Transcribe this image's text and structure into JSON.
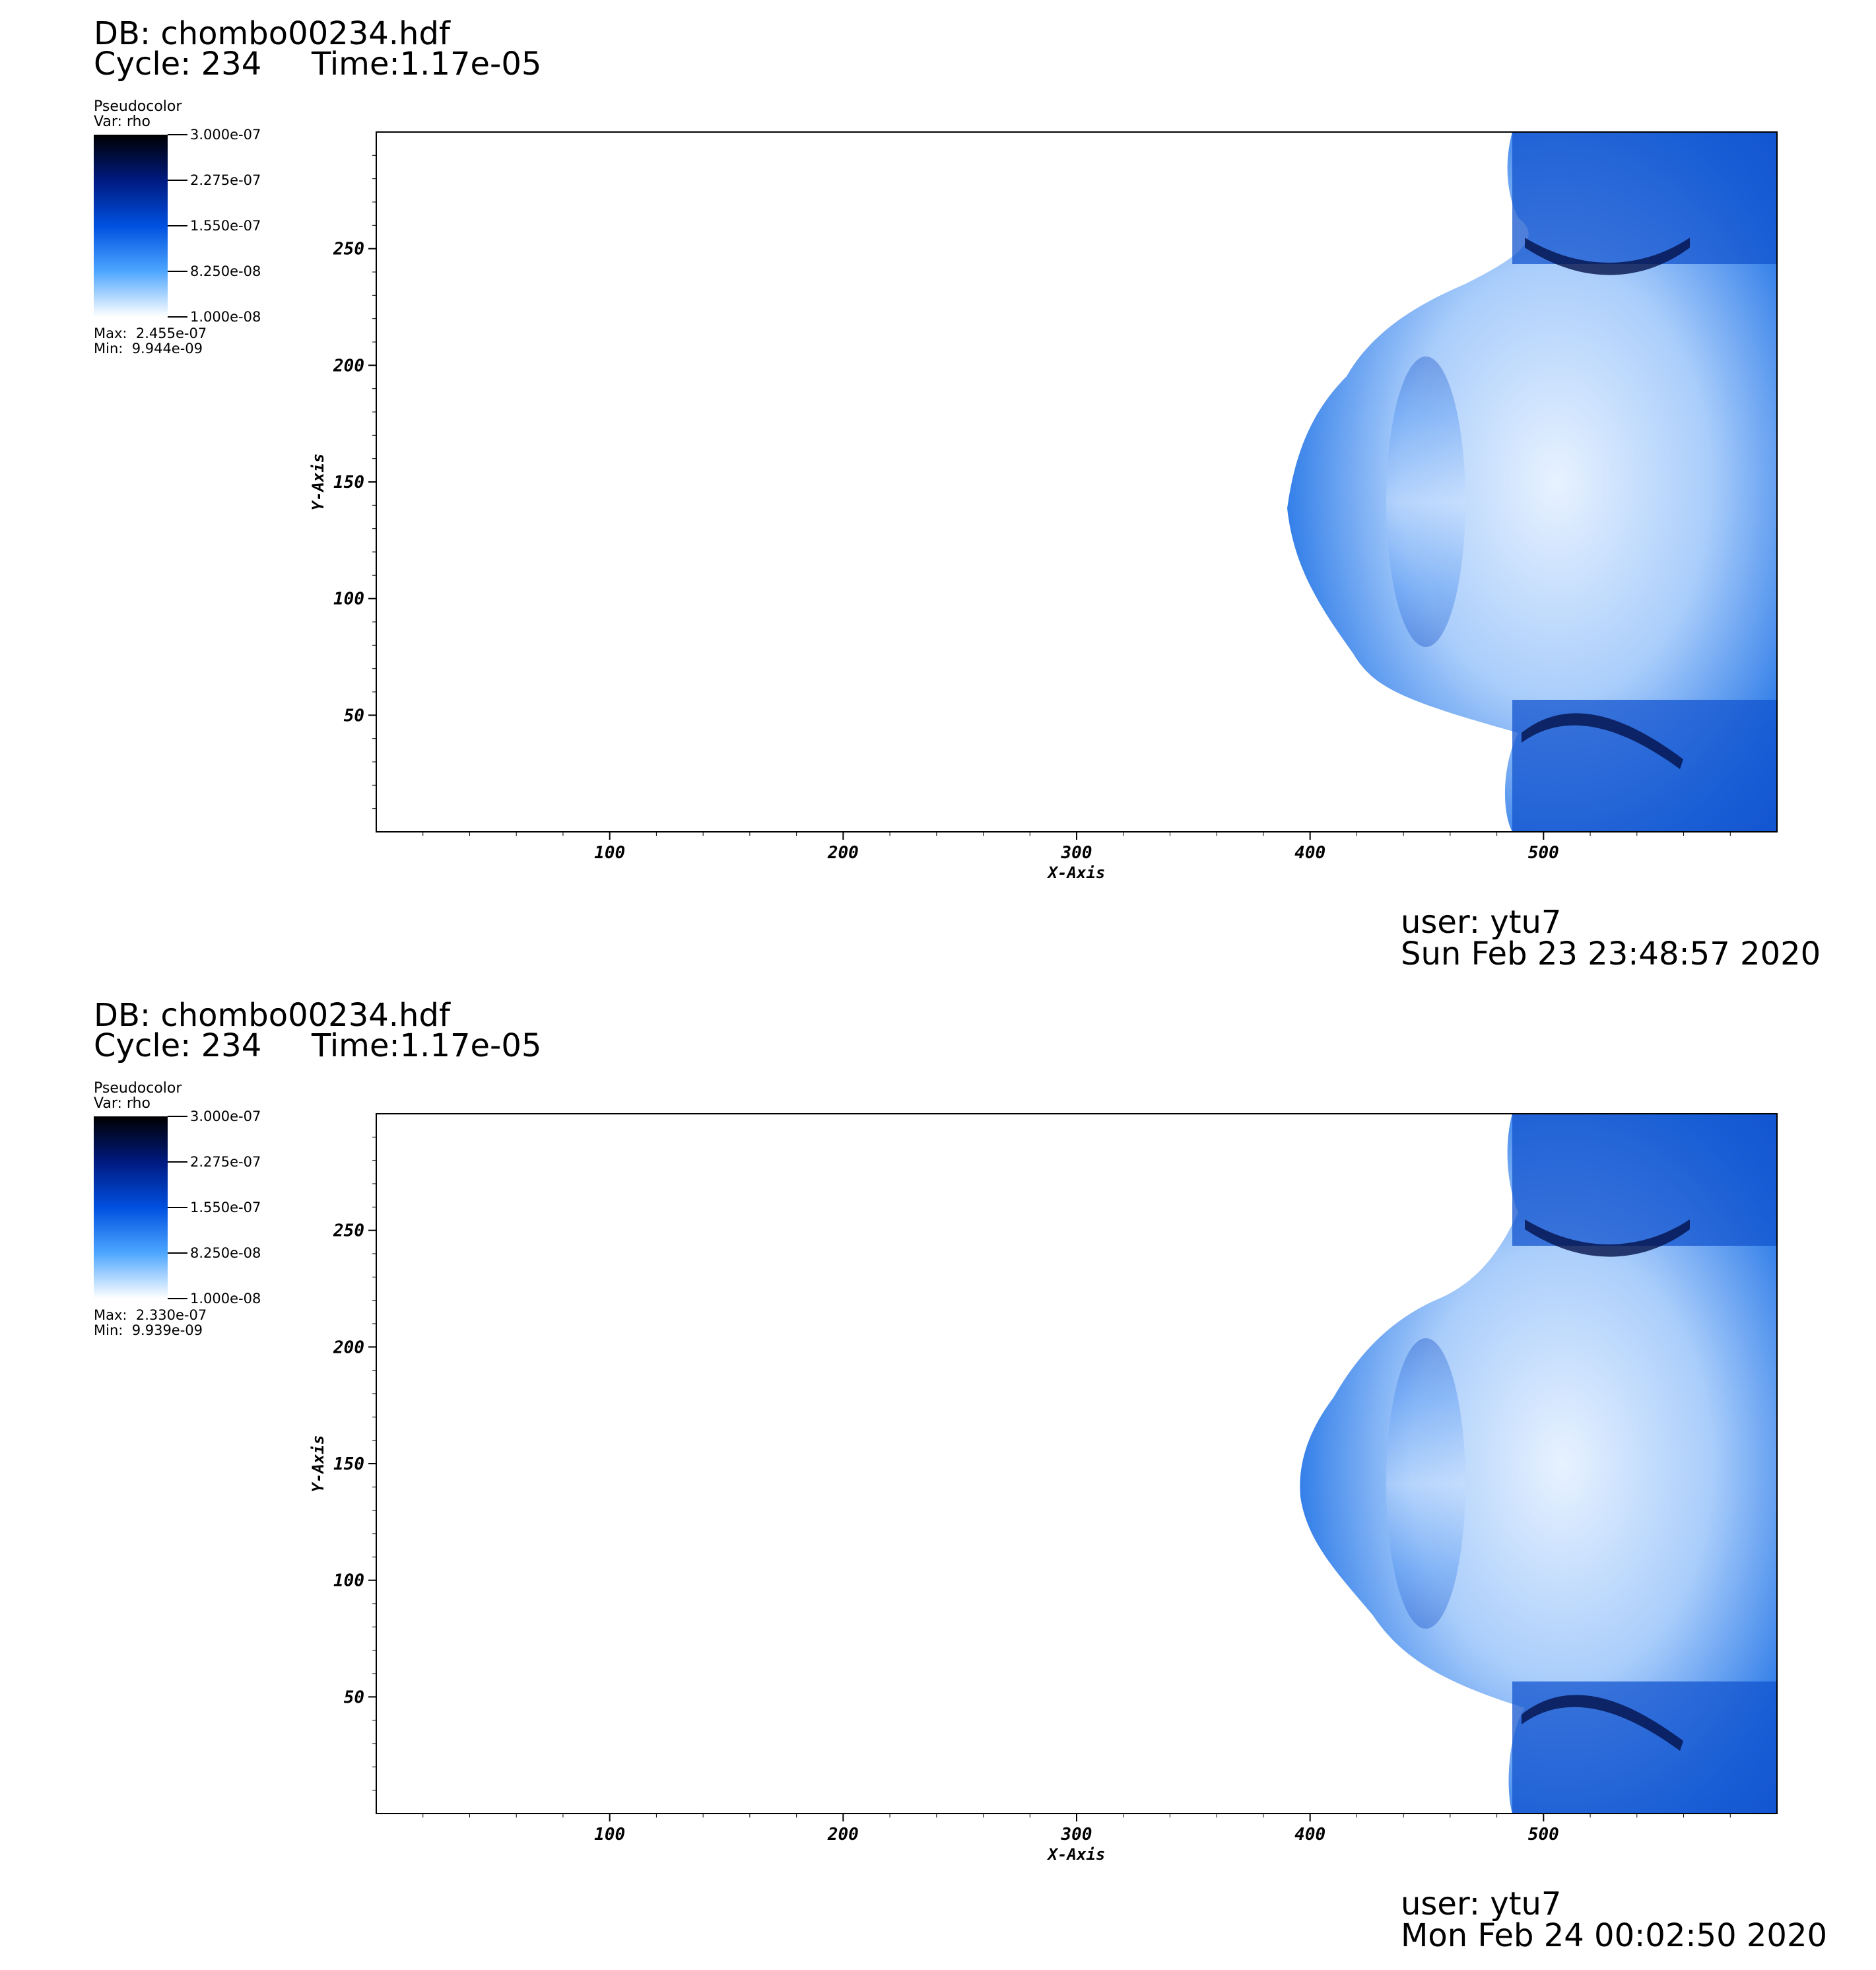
{
  "chart_data": [
    {
      "type": "heatmap",
      "title": "DB: chombo00234.hdf",
      "cycle_label": "Cycle: 234",
      "time_label": "Time:1.17e-05",
      "legend": {
        "plot_type": "Pseudocolor",
        "variable": "Var: rho",
        "ticks": [
          "3.000e-07",
          "2.275e-07",
          "1.550e-07",
          "8.250e-08",
          "1.000e-08"
        ],
        "max": "Max:  2.455e-07",
        "min": "Min:  9.944e-09",
        "colors": [
          "#000000",
          "#001a80",
          "#0050e0",
          "#4da6ff",
          "#ffffff"
        ]
      },
      "xlabel": "X-Axis",
      "ylabel": "Y-Axis",
      "xlim": [
        0,
        600
      ],
      "ylim": [
        0,
        300
      ],
      "x_ticks": [
        100,
        200,
        300,
        400,
        500
      ],
      "y_ticks": [
        50,
        100,
        150,
        200,
        250
      ],
      "user": "user: ytu7",
      "date": "Sun Feb 23 23:48:57 2020"
    },
    {
      "type": "heatmap",
      "title": "DB: chombo00234.hdf",
      "cycle_label": "Cycle: 234",
      "time_label": "Time:1.17e-05",
      "legend": {
        "plot_type": "Pseudocolor",
        "variable": "Var: rho",
        "ticks": [
          "3.000e-07",
          "2.275e-07",
          "1.550e-07",
          "8.250e-08",
          "1.000e-08"
        ],
        "max": "Max:  2.330e-07",
        "min": "Min:  9.939e-09",
        "colors": [
          "#000000",
          "#001a80",
          "#0050e0",
          "#4da6ff",
          "#ffffff"
        ]
      },
      "xlabel": "X-Axis",
      "ylabel": "Y-Axis",
      "xlim": [
        0,
        600
      ],
      "ylim": [
        0,
        300
      ],
      "x_ticks": [
        100,
        200,
        300,
        400,
        500
      ],
      "y_ticks": [
        50,
        100,
        150,
        200,
        250
      ],
      "user": "user: ytu7",
      "date": "Mon Feb 24 00:02:50 2020"
    }
  ]
}
